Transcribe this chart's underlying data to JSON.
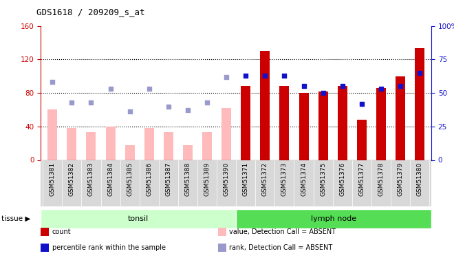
{
  "title": "GDS1618 / 209209_s_at",
  "samples": [
    "GSM51381",
    "GSM51382",
    "GSM51383",
    "GSM51384",
    "GSM51385",
    "GSM51386",
    "GSM51387",
    "GSM51388",
    "GSM51389",
    "GSM51390",
    "GSM51371",
    "GSM51372",
    "GSM51373",
    "GSM51374",
    "GSM51375",
    "GSM51376",
    "GSM51377",
    "GSM51378",
    "GSM51379",
    "GSM51380"
  ],
  "absent": [
    true,
    true,
    true,
    true,
    true,
    true,
    true,
    true,
    true,
    true,
    false,
    false,
    false,
    false,
    false,
    false,
    false,
    false,
    false,
    false
  ],
  "values": [
    60,
    38,
    33,
    40,
    18,
    38,
    33,
    18,
    33,
    62,
    88,
    130,
    88,
    80,
    82,
    88,
    48,
    86,
    100,
    133
  ],
  "ranks": [
    58,
    43,
    43,
    53,
    36,
    53,
    40,
    37,
    43,
    62,
    63,
    63,
    63,
    55,
    50,
    55,
    42,
    53,
    55,
    65
  ],
  "group1_label": "tonsil",
  "group2_label": "lymph node",
  "group1_count": 10,
  "group2_count": 10,
  "ylim_left": [
    0,
    160
  ],
  "ylim_right": [
    0,
    100
  ],
  "yticks_left": [
    0,
    40,
    80,
    120,
    160
  ],
  "yticks_right": [
    0,
    25,
    50,
    75,
    100
  ],
  "bar_color_present": "#cc0000",
  "bar_color_absent": "#ffbbbb",
  "dot_color_present": "#1111cc",
  "dot_color_absent": "#9999cc",
  "group1_bg": "#ccffcc",
  "group2_bg": "#55dd55",
  "axis_bg": "#ffffff",
  "title_color": "#000000",
  "left_axis_color": "#cc0000",
  "right_axis_color": "#1111cc",
  "bar_width": 0.5,
  "dot_size": 18
}
